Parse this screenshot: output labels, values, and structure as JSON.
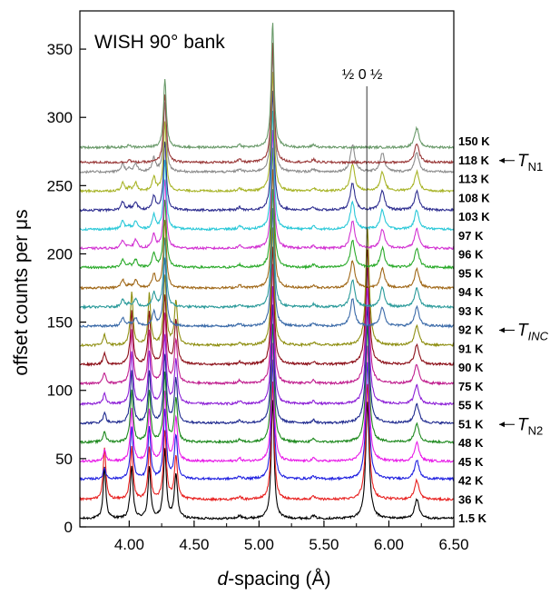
{
  "chart_data": {
    "type": "line",
    "title": "WISH 90° bank",
    "xlabel_italic": "d",
    "xlabel_rest": "-spacing (Å)",
    "ylabel": "offset counts per μs",
    "xlim": [
      3.62,
      6.5
    ],
    "ylim": [
      0,
      378
    ],
    "x_ticks": [
      {
        "value": 4.0,
        "label": "4.00"
      },
      {
        "value": 4.5,
        "label": "4.50"
      },
      {
        "value": 5.0,
        "label": "5.00"
      },
      {
        "value": 5.5,
        "label": "5.50"
      },
      {
        "value": 6.0,
        "label": "6.00"
      },
      {
        "value": 6.5,
        "label": "6.50"
      }
    ],
    "y_ticks": [
      0,
      50,
      100,
      150,
      200,
      250,
      300,
      350
    ],
    "annotation": {
      "text": "½ 0 ½",
      "x": 5.83
    },
    "transition_labels": [
      {
        "main": "T",
        "sub": "N1",
        "italic_sub": false,
        "temperature": "118 K"
      },
      {
        "main": "T",
        "sub": "INC",
        "italic_sub": true,
        "temperature": "92 K"
      },
      {
        "main": "T",
        "sub": "N2",
        "italic_sub": false,
        "temperature": "51 K"
      }
    ],
    "series": [
      {
        "name": "1.5 K",
        "color": "#000000",
        "offset": 6
      },
      {
        "name": "36 K",
        "color": "#e8201f",
        "offset": 20
      },
      {
        "name": "42 K",
        "color": "#2121e0",
        "offset": 35
      },
      {
        "name": "45 K",
        "color": "#e81ce8",
        "offset": 48
      },
      {
        "name": "48 K",
        "color": "#1f8a1f",
        "offset": 62
      },
      {
        "name": "51 K",
        "color": "#1f2a8f",
        "offset": 76
      },
      {
        "name": "55 K",
        "color": "#8c1fd6",
        "offset": 90
      },
      {
        "name": "75 K",
        "color": "#c01f8f",
        "offset": 105
      },
      {
        "name": "90 K",
        "color": "#8c0f18",
        "offset": 119
      },
      {
        "name": "91 K",
        "color": "#8f8f12",
        "offset": 133
      },
      {
        "name": "92 K",
        "color": "#3a6aa8",
        "offset": 147
      },
      {
        "name": "93 K",
        "color": "#2a9a9a",
        "offset": 161
      },
      {
        "name": "94 K",
        "color": "#a06818",
        "offset": 175
      },
      {
        "name": "95 K",
        "color": "#2aaa2a",
        "offset": 190
      },
      {
        "name": "96 K",
        "color": "#d232d2",
        "offset": 204
      },
      {
        "name": "97 K",
        "color": "#2ac8d8",
        "offset": 218
      },
      {
        "name": "103 K",
        "color": "#2e2e90",
        "offset": 232
      },
      {
        "name": "108 K",
        "color": "#a8b428",
        "offset": 246
      },
      {
        "name": "113 K",
        "color": "#8c8c8c",
        "offset": 260
      },
      {
        "name": "118 K",
        "color": "#9a3a3a",
        "offset": 267
      },
      {
        "name": "150 K",
        "color": "#6a9a6a",
        "offset": 278
      }
    ],
    "peaks": {
      "nuclear": [
        {
          "x": 4.275,
          "h": 50,
          "w": 0.013
        },
        {
          "x": 5.105,
          "h": 88,
          "w": 0.013
        },
        {
          "x": 6.215,
          "h": 14,
          "w": 0.02
        },
        {
          "x": 4.0,
          "h": 2,
          "w": 0.012
        },
        {
          "x": 4.85,
          "h": 2,
          "w": 0.015
        },
        {
          "x": 5.42,
          "h": 2,
          "w": 0.015
        }
      ],
      "low_temperature": [
        {
          "x": 3.81,
          "h": 38,
          "w": 0.012
        },
        {
          "x": 4.02,
          "h": 38,
          "w": 0.012
        },
        {
          "x": 4.155,
          "h": 38,
          "w": 0.012
        },
        {
          "x": 4.36,
          "h": 32,
          "w": 0.014
        },
        {
          "x": 5.835,
          "h": 85,
          "w": 0.016
        }
      ],
      "incommensurate": [
        {
          "x": 3.95,
          "h": 6,
          "w": 0.015
        },
        {
          "x": 4.05,
          "h": 6,
          "w": 0.015
        },
        {
          "x": 4.19,
          "h": 10,
          "w": 0.015
        },
        {
          "x": 5.72,
          "h": 20,
          "w": 0.02
        },
        {
          "x": 5.95,
          "h": 14,
          "w": 0.02
        }
      ]
    }
  }
}
